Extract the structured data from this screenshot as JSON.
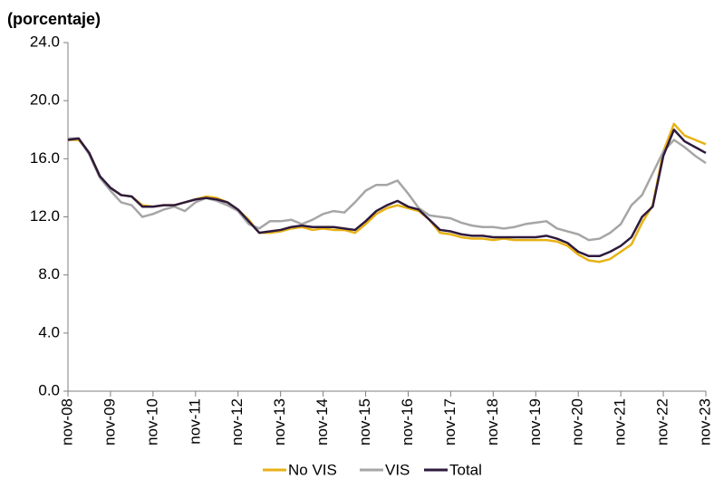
{
  "chart_data": {
    "type": "line",
    "y_label": "(porcentaje)",
    "categories": [
      "nov-08",
      null,
      null,
      null,
      "nov-09",
      null,
      null,
      null,
      "nov-10",
      null,
      null,
      null,
      "nov-11",
      null,
      null,
      null,
      "nov-12",
      null,
      null,
      null,
      "nov-13",
      null,
      null,
      null,
      "nov-14",
      null,
      null,
      null,
      "nov-15",
      null,
      null,
      null,
      "nov-16",
      null,
      null,
      null,
      "nov-17",
      null,
      null,
      null,
      "nov-18",
      null,
      null,
      null,
      "nov-19",
      null,
      null,
      null,
      "nov-20",
      null,
      null,
      null,
      "nov-21",
      null,
      null,
      null,
      "nov-22",
      null,
      null,
      null,
      "nov-23"
    ],
    "series": [
      {
        "name": "No VIS",
        "color": "#e8b215",
        "values": [
          17.3,
          17.3,
          16.4,
          14.8,
          14.0,
          13.5,
          13.4,
          12.8,
          12.7,
          12.8,
          12.8,
          13.0,
          13.2,
          13.4,
          13.3,
          13.0,
          12.5,
          11.8,
          10.9,
          10.9,
          11.0,
          11.2,
          11.3,
          11.1,
          11.2,
          11.1,
          11.1,
          10.9,
          11.5,
          12.2,
          12.6,
          12.8,
          12.6,
          12.4,
          11.8,
          10.9,
          10.8,
          10.6,
          10.5,
          10.5,
          10.4,
          10.5,
          10.4,
          10.4,
          10.4,
          10.4,
          10.3,
          10.0,
          9.4,
          9.0,
          8.9,
          9.1,
          9.6,
          10.1,
          11.6,
          12.8,
          16.5,
          18.4,
          17.6,
          17.3,
          17.0
        ]
      },
      {
        "name": "VIS",
        "color": "#a6a6a6",
        "values": [
          17.4,
          17.4,
          16.3,
          14.7,
          13.8,
          13.0,
          12.8,
          12.0,
          12.2,
          12.5,
          12.7,
          12.4,
          13.0,
          13.3,
          13.1,
          12.8,
          12.4,
          11.5,
          11.2,
          11.7,
          11.7,
          11.8,
          11.5,
          11.8,
          12.2,
          12.4,
          12.3,
          13.0,
          13.8,
          14.2,
          14.2,
          14.5,
          13.6,
          12.6,
          12.1,
          12.0,
          11.9,
          11.6,
          11.4,
          11.3,
          11.3,
          11.2,
          11.3,
          11.5,
          11.6,
          11.7,
          11.2,
          11.0,
          10.8,
          10.4,
          10.5,
          10.9,
          11.5,
          12.8,
          13.5,
          15.0,
          16.5,
          17.3,
          16.8,
          16.2,
          15.7
        ]
      },
      {
        "name": "Total",
        "color": "#2e1a3d",
        "values": [
          17.3,
          17.4,
          16.4,
          14.8,
          14.0,
          13.5,
          13.4,
          12.7,
          12.7,
          12.8,
          12.8,
          13.0,
          13.2,
          13.3,
          13.2,
          13.0,
          12.5,
          11.7,
          10.9,
          11.0,
          11.1,
          11.3,
          11.4,
          11.3,
          11.3,
          11.3,
          11.2,
          11.1,
          11.7,
          12.4,
          12.8,
          13.1,
          12.7,
          12.5,
          11.8,
          11.1,
          11.0,
          10.8,
          10.7,
          10.7,
          10.6,
          10.6,
          10.6,
          10.6,
          10.6,
          10.7,
          10.5,
          10.2,
          9.6,
          9.3,
          9.3,
          9.6,
          10.0,
          10.6,
          12.0,
          12.7,
          16.2,
          18.0,
          17.2,
          16.8,
          16.4
        ]
      }
    ],
    "ylim": [
      0,
      24
    ],
    "yticks": [
      {
        "value": 0,
        "label": "0.0"
      },
      {
        "value": 4,
        "label": "4.0"
      },
      {
        "value": 8,
        "label": "8.0"
      },
      {
        "value": 12,
        "label": "12.0"
      },
      {
        "value": 16,
        "label": "16.0"
      },
      {
        "value": 20,
        "label": "20.0"
      },
      {
        "value": 24,
        "label": "24.0"
      }
    ],
    "legend": "bottom"
  }
}
